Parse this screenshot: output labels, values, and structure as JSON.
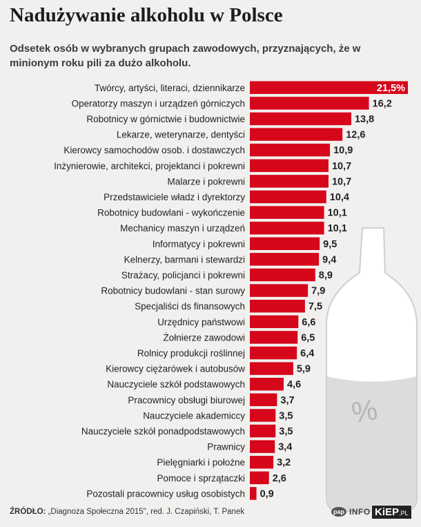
{
  "title": "Nadużywanie alkoholu w Polsce",
  "subtitle": "Odsetek osób w wybranych grupach zawodowych, przyznających, że w minionym roku pili za dużo alkoholu.",
  "colors": {
    "bar": "#d6071b",
    "bottle": "#dcdcdc",
    "text": "#222222"
  },
  "bottle_symbol": "%",
  "chart_data": {
    "type": "bar",
    "orientation": "horizontal",
    "title": "Nadużywanie alkoholu w Polsce",
    "subtitle": "Odsetek osób w wybranych grupach zawodowych, przyznających, że w minionym roku pili za dużo alkoholu.",
    "categories": [
      "Twórcy, artyści, literaci, dziennikarze",
      "Operatorzy maszyn i urządzeń górniczych",
      "Robotnicy w górnictwie i budownictwie",
      "Lekarze, weterynarze, dentyści",
      "Kierowcy samochodów osob. i dostawczych",
      "Inżynierowie, architekci, projektanci i pokrewni",
      "Malarze i pokrewni",
      "Przedstawiciele władz i dyrektorzy",
      "Robotnicy budowlani - wykończenie",
      "Mechanicy maszyn i urządzeń",
      "Informatycy i pokrewni",
      "Kelnerzy, barmani i stewardzi",
      "Strażacy, policjanci i pokrewni",
      "Robotnicy budowlani - stan surowy",
      "Specjaliści ds finansowych",
      "Urzędnicy państwowi",
      "Żołnierze zawodowi",
      "Rolnicy produkcji roślinnej",
      "Kierowcy ciężarówek i autobusów",
      "Nauczyciele szkół podstawowych",
      "Pracownicy obsługi biurowej",
      "Nauczyciele akademiccy",
      "Nauczyciele szkół ponadpodstawowych",
      "Prawnicy",
      "Pielęgniarki i położne",
      "Pomoce i sprzątaczki",
      "Pozostali pracownicy usług osobistych"
    ],
    "values": [
      21.5,
      16.2,
      13.8,
      12.6,
      10.9,
      10.7,
      10.7,
      10.4,
      10.1,
      10.1,
      9.5,
      9.4,
      8.9,
      7.9,
      7.5,
      6.6,
      6.5,
      6.4,
      5.9,
      4.6,
      3.7,
      3.5,
      3.5,
      3.4,
      3.2,
      2.6,
      0.9
    ],
    "value_labels": [
      "21,5%",
      "16,2",
      "13,8",
      "12,6",
      "10,9",
      "10,7",
      "10,7",
      "10,4",
      "10,1",
      "10,1",
      "9,5",
      "9,4",
      "8,9",
      "7,9",
      "7,5",
      "6,6",
      "6,5",
      "6,4",
      "5,9",
      "4,6",
      "3,7",
      "3,5",
      "3,5",
      "3,4",
      "3,2",
      "2,6",
      "0,9"
    ],
    "xlim": [
      0,
      21.5
    ],
    "grid": false,
    "legend": "none"
  },
  "footer": {
    "source_label": "ŹRÓDŁO:",
    "source_text": " „Diagnoza Społeczna 2015\", red. J. Czapiński, T. Panek",
    "logo_pap": "pap",
    "logo_info": "INFO",
    "watermark": "KiEP",
    "watermark_suffix": ".PL"
  }
}
